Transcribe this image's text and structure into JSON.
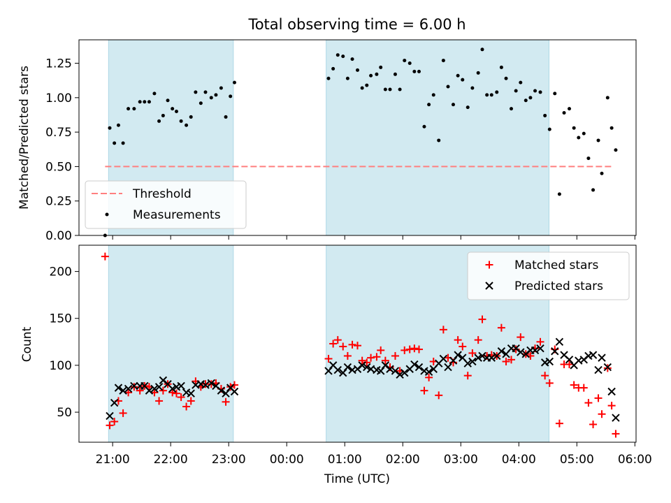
{
  "chart_data": {
    "type": "scatter",
    "title": "Total observing time = 6.00 h",
    "xlabel": "Time (UTC)",
    "x_tick_labels": [
      "21:00",
      "22:00",
      "23:00",
      "00:00",
      "01:00",
      "02:00",
      "03:00",
      "04:00",
      "05:00",
      "06:00"
    ],
    "x_tick_hours": [
      21,
      22,
      23,
      24,
      25,
      26,
      27,
      28,
      29,
      30
    ],
    "xlim_hours": [
      20.42,
      30.02
    ],
    "shaded_intervals_hours": [
      [
        20.93,
        23.08
      ],
      [
        24.68,
        28.52
      ]
    ],
    "shade_color": "#add8e6",
    "top_panel": {
      "ylabel": "Matched/Predicted stars",
      "ylim": [
        0,
        1.42
      ],
      "y_ticks": [
        0,
        0.25,
        0.5,
        0.75,
        1.0,
        1.25
      ],
      "y_tick_labels": [
        "0.00",
        "0.25",
        "0.50",
        "0.75",
        "1.00",
        "1.25"
      ],
      "legend_position": "lower-left",
      "threshold": {
        "name": "Threshold",
        "value": 0.5,
        "x_range_hours": [
          20.87,
          29.62
        ],
        "color": "#ff7f7f"
      },
      "measurements": {
        "name": "Measurements",
        "color": "#000000",
        "points": [
          [
            20.87,
            0.0
          ],
          [
            20.95,
            0.78
          ],
          [
            21.03,
            0.67
          ],
          [
            21.1,
            0.8
          ],
          [
            21.18,
            0.67
          ],
          [
            21.27,
            0.92
          ],
          [
            21.37,
            0.92
          ],
          [
            21.47,
            0.97
          ],
          [
            21.55,
            0.97
          ],
          [
            21.63,
            0.97
          ],
          [
            21.72,
            1.03
          ],
          [
            21.8,
            0.83
          ],
          [
            21.87,
            0.87
          ],
          [
            21.95,
            0.98
          ],
          [
            22.03,
            0.92
          ],
          [
            22.1,
            0.9
          ],
          [
            22.18,
            0.83
          ],
          [
            22.27,
            0.8
          ],
          [
            22.35,
            0.86
          ],
          [
            22.43,
            1.04
          ],
          [
            22.52,
            0.96
          ],
          [
            22.6,
            1.04
          ],
          [
            22.7,
            1.0
          ],
          [
            22.78,
            1.02
          ],
          [
            22.87,
            1.07
          ],
          [
            22.95,
            0.86
          ],
          [
            23.03,
            1.01
          ],
          [
            23.1,
            1.11
          ],
          [
            24.72,
            1.14
          ],
          [
            24.8,
            1.21
          ],
          [
            24.88,
            1.31
          ],
          [
            24.97,
            1.3
          ],
          [
            25.05,
            1.14
          ],
          [
            25.13,
            1.28
          ],
          [
            25.22,
            1.2
          ],
          [
            25.3,
            1.07
          ],
          [
            25.38,
            1.09
          ],
          [
            25.45,
            1.16
          ],
          [
            25.55,
            1.17
          ],
          [
            25.62,
            1.22
          ],
          [
            25.7,
            1.06
          ],
          [
            25.78,
            1.06
          ],
          [
            25.87,
            1.17
          ],
          [
            25.95,
            1.06
          ],
          [
            26.03,
            1.27
          ],
          [
            26.12,
            1.25
          ],
          [
            26.2,
            1.19
          ],
          [
            26.28,
            1.19
          ],
          [
            26.37,
            0.79
          ],
          [
            26.45,
            0.95
          ],
          [
            26.53,
            1.02
          ],
          [
            26.62,
            0.69
          ],
          [
            26.7,
            1.27
          ],
          [
            26.78,
            1.08
          ],
          [
            26.87,
            0.95
          ],
          [
            26.95,
            1.16
          ],
          [
            27.03,
            1.13
          ],
          [
            27.12,
            0.93
          ],
          [
            27.2,
            1.07
          ],
          [
            27.3,
            1.18
          ],
          [
            27.37,
            1.35
          ],
          [
            27.45,
            1.02
          ],
          [
            27.53,
            1.02
          ],
          [
            27.62,
            1.04
          ],
          [
            27.7,
            1.22
          ],
          [
            27.78,
            1.14
          ],
          [
            27.87,
            0.92
          ],
          [
            27.95,
            1.05
          ],
          [
            28.03,
            1.11
          ],
          [
            28.12,
            0.98
          ],
          [
            28.2,
            1.0
          ],
          [
            28.28,
            1.05
          ],
          [
            28.37,
            1.04
          ],
          [
            28.45,
            0.87
          ],
          [
            28.53,
            0.77
          ],
          [
            28.62,
            1.03
          ],
          [
            28.7,
            0.3
          ],
          [
            28.78,
            0.89
          ],
          [
            28.87,
            0.92
          ],
          [
            28.95,
            0.78
          ],
          [
            29.03,
            0.71
          ],
          [
            29.12,
            0.74
          ],
          [
            29.2,
            0.56
          ],
          [
            29.28,
            0.33
          ],
          [
            29.37,
            0.69
          ],
          [
            29.43,
            0.45
          ],
          [
            29.53,
            1.0
          ],
          [
            29.6,
            0.78
          ],
          [
            29.67,
            0.62
          ]
        ]
      }
    },
    "bottom_panel": {
      "ylabel": "Count",
      "ylim": [
        18,
        228
      ],
      "y_ticks": [
        50,
        100,
        150,
        200
      ],
      "y_tick_labels": [
        "50",
        "100",
        "150",
        "200"
      ],
      "legend_position": "upper-right",
      "series": [
        {
          "name": "Matched stars",
          "marker": "plus",
          "color": "#ff0000",
          "points": [
            [
              20.87,
              216
            ],
            [
              20.95,
              36
            ],
            [
              21.03,
              40
            ],
            [
              21.1,
              62
            ],
            [
              21.18,
              49
            ],
            [
              21.27,
              71
            ],
            [
              21.37,
              77
            ],
            [
              21.47,
              73
            ],
            [
              21.55,
              78
            ],
            [
              21.63,
              77
            ],
            [
              21.72,
              71
            ],
            [
              21.8,
              62
            ],
            [
              21.87,
              73
            ],
            [
              21.95,
              80
            ],
            [
              22.03,
              71
            ],
            [
              22.1,
              70
            ],
            [
              22.18,
              66
            ],
            [
              22.27,
              56
            ],
            [
              22.35,
              62
            ],
            [
              22.43,
              83
            ],
            [
              22.52,
              77
            ],
            [
              22.6,
              80
            ],
            [
              22.7,
              80
            ],
            [
              22.78,
              81
            ],
            [
              22.87,
              75
            ],
            [
              22.95,
              61
            ],
            [
              23.03,
              77
            ],
            [
              23.1,
              79
            ],
            [
              24.72,
              107
            ],
            [
              24.8,
              123
            ],
            [
              24.88,
              127
            ],
            [
              24.97,
              120
            ],
            [
              25.05,
              110
            ],
            [
              25.13,
              122
            ],
            [
              25.22,
              121
            ],
            [
              25.3,
              105
            ],
            [
              25.38,
              103
            ],
            [
              25.45,
              108
            ],
            [
              25.55,
              109
            ],
            [
              25.62,
              116
            ],
            [
              25.7,
              105
            ],
            [
              25.78,
              98
            ],
            [
              25.87,
              110
            ],
            [
              25.95,
              94
            ],
            [
              26.03,
              116
            ],
            [
              26.12,
              117
            ],
            [
              26.2,
              118
            ],
            [
              26.28,
              117
            ],
            [
              26.37,
              73
            ],
            [
              26.45,
              87
            ],
            [
              26.53,
              104
            ],
            [
              26.62,
              68
            ],
            [
              26.7,
              138
            ],
            [
              26.78,
              108
            ],
            [
              26.87,
              103
            ],
            [
              26.95,
              127
            ],
            [
              27.03,
              120
            ],
            [
              27.12,
              89
            ],
            [
              27.2,
              113
            ],
            [
              27.3,
              127
            ],
            [
              27.37,
              149
            ],
            [
              27.45,
              110
            ],
            [
              27.53,
              111
            ],
            [
              27.62,
              110
            ],
            [
              27.7,
              140
            ],
            [
              27.78,
              104
            ],
            [
              27.87,
              106
            ],
            [
              27.95,
              117
            ],
            [
              28.03,
              130
            ],
            [
              28.12,
              112
            ],
            [
              28.2,
              110
            ],
            [
              28.28,
              118
            ],
            [
              28.37,
              125
            ],
            [
              28.45,
              89
            ],
            [
              28.53,
              81
            ],
            [
              28.62,
              117
            ],
            [
              28.7,
              38
            ],
            [
              28.78,
              101
            ],
            [
              28.87,
              101
            ],
            [
              28.95,
              79
            ],
            [
              29.03,
              76
            ],
            [
              29.12,
              76
            ],
            [
              29.2,
              60
            ],
            [
              29.28,
              37
            ],
            [
              29.37,
              65
            ],
            [
              29.43,
              48
            ],
            [
              29.53,
              97
            ],
            [
              29.6,
              57
            ],
            [
              29.67,
              27
            ]
          ]
        },
        {
          "name": "Predicted stars",
          "marker": "x",
          "color": "#000000",
          "points": [
            [
              20.95,
              46
            ],
            [
              21.03,
              60
            ],
            [
              21.1,
              76
            ],
            [
              21.18,
              73
            ],
            [
              21.27,
              75
            ],
            [
              21.37,
              78
            ],
            [
              21.47,
              78
            ],
            [
              21.55,
              78
            ],
            [
              21.63,
              73
            ],
            [
              21.72,
              75
            ],
            [
              21.8,
              77
            ],
            [
              21.87,
              84
            ],
            [
              21.95,
              80
            ],
            [
              22.03,
              75
            ],
            [
              22.1,
              77
            ],
            [
              22.18,
              78
            ],
            [
              22.27,
              71
            ],
            [
              22.35,
              70
            ],
            [
              22.43,
              79
            ],
            [
              22.52,
              80
            ],
            [
              22.6,
              79
            ],
            [
              22.7,
              81
            ],
            [
              22.78,
              78
            ],
            [
              22.87,
              73
            ],
            [
              22.95,
              70
            ],
            [
              23.03,
              76
            ],
            [
              23.1,
              72
            ],
            [
              24.72,
              94
            ],
            [
              24.8,
              100
            ],
            [
              24.88,
              95
            ],
            [
              24.97,
              92
            ],
            [
              25.05,
              98
            ],
            [
              25.13,
              95
            ],
            [
              25.22,
              96
            ],
            [
              25.3,
              100
            ],
            [
              25.38,
              98
            ],
            [
              25.45,
              96
            ],
            [
              25.55,
              95
            ],
            [
              25.62,
              94
            ],
            [
              25.7,
              100
            ],
            [
              25.78,
              96
            ],
            [
              25.87,
              94
            ],
            [
              25.95,
              90
            ],
            [
              26.03,
              92
            ],
            [
              26.12,
              96
            ],
            [
              26.2,
              101
            ],
            [
              26.28,
              98
            ],
            [
              26.37,
              94
            ],
            [
              26.45,
              93
            ],
            [
              26.53,
              96
            ],
            [
              26.62,
              102
            ],
            [
              26.7,
              107
            ],
            [
              26.78,
              98
            ],
            [
              26.87,
              105
            ],
            [
              26.95,
              111
            ],
            [
              27.03,
              108
            ],
            [
              27.12,
              102
            ],
            [
              27.2,
              104
            ],
            [
              27.3,
              108
            ],
            [
              27.37,
              110
            ],
            [
              27.45,
              108
            ],
            [
              27.53,
              108
            ],
            [
              27.62,
              110
            ],
            [
              27.7,
              115
            ],
            [
              27.78,
              112
            ],
            [
              27.87,
              118
            ],
            [
              27.95,
              118
            ],
            [
              28.03,
              114
            ],
            [
              28.12,
              112
            ],
            [
              28.2,
              116
            ],
            [
              28.28,
              116
            ],
            [
              28.37,
              118
            ],
            [
              28.45,
              103
            ],
            [
              28.53,
              104
            ],
            [
              28.62,
              115
            ],
            [
              28.7,
              125
            ],
            [
              28.78,
              111
            ],
            [
              28.87,
              106
            ],
            [
              28.95,
              100
            ],
            [
              29.03,
              105
            ],
            [
              29.12,
              106
            ],
            [
              29.2,
              110
            ],
            [
              29.28,
              111
            ],
            [
              29.37,
              95
            ],
            [
              29.43,
              108
            ],
            [
              29.53,
              98
            ],
            [
              29.6,
              72
            ],
            [
              29.67,
              44
            ]
          ]
        }
      ]
    }
  }
}
